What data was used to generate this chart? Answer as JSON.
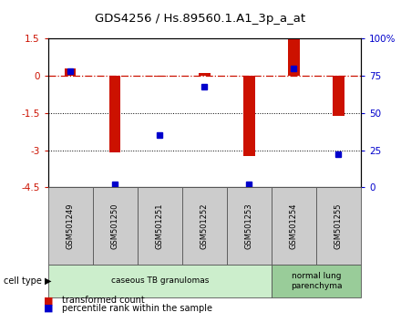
{
  "title": "GDS4256 / Hs.89560.1.A1_3p_a_at",
  "samples": [
    "GSM501249",
    "GSM501250",
    "GSM501251",
    "GSM501252",
    "GSM501253",
    "GSM501254",
    "GSM501255"
  ],
  "transformed_count": [
    0.3,
    -3.1,
    -0.02,
    0.1,
    -3.25,
    1.5,
    -1.6
  ],
  "percentile_rank": [
    78,
    2,
    35,
    68,
    2,
    80,
    22
  ],
  "ylim_left": [
    -4.5,
    1.5
  ],
  "ylim_right": [
    0,
    100
  ],
  "yticks_left": [
    1.5,
    0,
    -1.5,
    -3,
    -4.5
  ],
  "yticks_right": [
    100,
    75,
    50,
    25,
    0
  ],
  "ytick_labels_left": [
    "1.5",
    "0",
    "-1.5",
    "-3",
    "-4.5"
  ],
  "ytick_labels_right": [
    "100%",
    "75",
    "50",
    "25",
    "0"
  ],
  "hline_y": 0,
  "dotted_lines": [
    -1.5,
    -3
  ],
  "bar_color": "#CC1100",
  "dot_color": "#0000CC",
  "bar_width": 0.25,
  "groups": [
    {
      "label": "caseous TB granulomas",
      "indices": [
        0,
        1,
        2,
        3,
        4
      ],
      "color": "#CCEECC"
    },
    {
      "label": "normal lung\nparenchyma",
      "indices": [
        5,
        6
      ],
      "color": "#99CC99"
    }
  ],
  "cell_type_label": "cell type",
  "legend_bar_label": "transformed count",
  "legend_dot_label": "percentile rank within the sample",
  "bg_color": "#FFFFFF",
  "sample_box_color": "#CCCCCC",
  "sample_box_edge": "#555555"
}
